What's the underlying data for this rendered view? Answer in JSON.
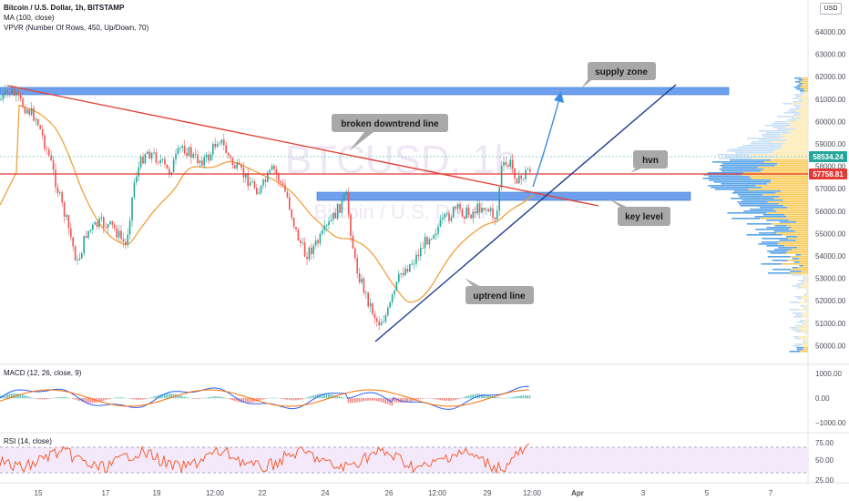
{
  "symbol": {
    "title": "Bitcoin / U.S. Dollar, 1h, BITSTAMP",
    "indicator1": "MA (100, close)",
    "indicator2": "VPVR (Number Of Rows, 450, Up/Down, 70)",
    "watermark_big": "BTCUSD, 1h",
    "watermark_small": "Bitcoin / U.S. Dollar"
  },
  "currency_button": "USD",
  "price_axis": {
    "ticks": [
      "64000.00",
      "63000.00",
      "62000.00",
      "61000.00",
      "60000.00",
      "59000.00",
      "58000.00",
      "57000.00",
      "56000.00",
      "55000.00",
      "54000.00",
      "53000.00",
      "52000.00",
      "51000.00",
      "50000.00"
    ],
    "top_partial": "64000.00",
    "current_price": "58534.24",
    "hvn_price": "57758.81"
  },
  "macd": {
    "label": "MACD (12, 26, close, 9)",
    "ticks": [
      "1000.00",
      "0.00",
      "−1000.00"
    ]
  },
  "rsi": {
    "label": "RSI (14, close)",
    "ticks": [
      "75.00",
      "50.00",
      "25.00"
    ]
  },
  "time_axis": [
    "15",
    "17",
    "19",
    "12:00",
    "22",
    "24",
    "26",
    "12:00",
    "29",
    "12:00",
    "Apr",
    "3",
    "5",
    "7"
  ],
  "annotations": {
    "supply_zone": "supply zone",
    "broken_downtrend": "broken downtrend line",
    "hvn": "hvn",
    "key_level": "key level",
    "uptrend_line": "uptrend line"
  },
  "colors": {
    "zone_blue": "#6fa0ee",
    "downtrend_red": "#e0453a",
    "uptrend_navy": "#1c3d8f",
    "arrow_blue": "#3a8ee0",
    "ma_orange": "#f0a13c",
    "candle_up": "#26a69a",
    "candle_down": "#ef5350",
    "hvn_red": "#e53935"
  }
}
